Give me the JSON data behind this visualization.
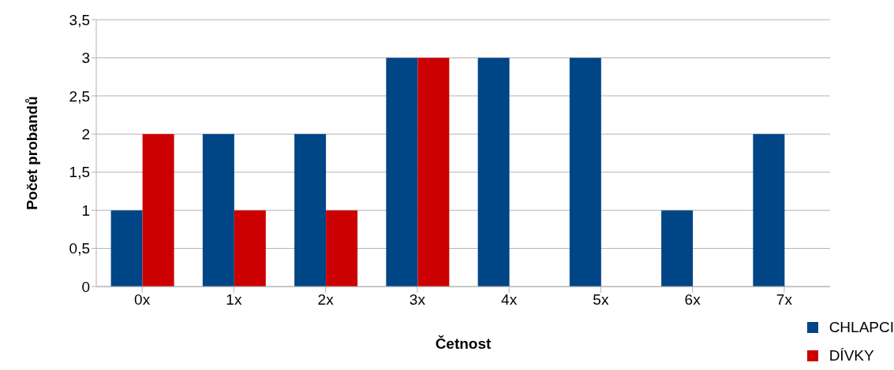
{
  "chart_data": {
    "type": "bar",
    "xlabel": "Četnost",
    "ylabel": "Počet probandů",
    "categories": [
      "0x",
      "1x",
      "2x",
      "3x",
      "4x",
      "5x",
      "6x",
      "7x"
    ],
    "series": [
      {
        "name": "CHLAPCI",
        "color": "#004586",
        "values": [
          1,
          2,
          2,
          3,
          3,
          3,
          1,
          2
        ]
      },
      {
        "name": "DÍVKY",
        "color": "#cc0000",
        "values": [
          2,
          1,
          1,
          3,
          0,
          0,
          0,
          0
        ]
      }
    ],
    "ylim": [
      0,
      3.5
    ],
    "yticks": [
      0,
      {
        "value": 0.5,
        "label": "0,5"
      },
      1,
      {
        "value": 1.5,
        "label": "1,5"
      },
      2,
      {
        "value": 2.5,
        "label": "2,5"
      },
      3,
      {
        "value": 3.5,
        "label": "3,5"
      }
    ],
    "grid": "y",
    "legend": "bottom right"
  }
}
